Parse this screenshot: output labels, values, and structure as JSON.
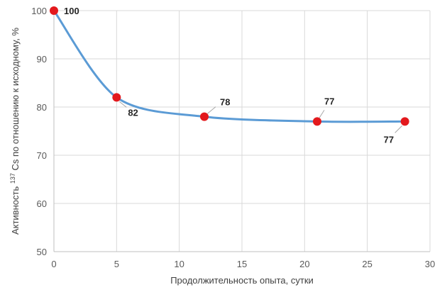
{
  "chart_data": {
    "type": "line",
    "title": "",
    "xlabel": "Продолжительность опыта, сутки",
    "ylabel_parts": {
      "before": "Активность ",
      "superscript": "137",
      "after": " Cs по отношению к исходному, %"
    },
    "xlim": [
      0,
      30
    ],
    "ylim": [
      50,
      100
    ],
    "xticks": [
      0,
      5,
      10,
      15,
      20,
      25,
      30
    ],
    "yticks": [
      50,
      60,
      70,
      80,
      90,
      100
    ],
    "grid": true,
    "legend": "none",
    "series": [
      {
        "x": [
          0,
          5,
          12,
          21,
          28
        ],
        "y": [
          100,
          82,
          78,
          77,
          77
        ],
        "labels": [
          "100",
          "82",
          "78",
          "77",
          "77"
        ]
      }
    ],
    "colors": {
      "line": "#5b9bd5",
      "marker": "#e3191d",
      "grid": "#d9d9d9",
      "axis": "#bfbfbf"
    }
  }
}
